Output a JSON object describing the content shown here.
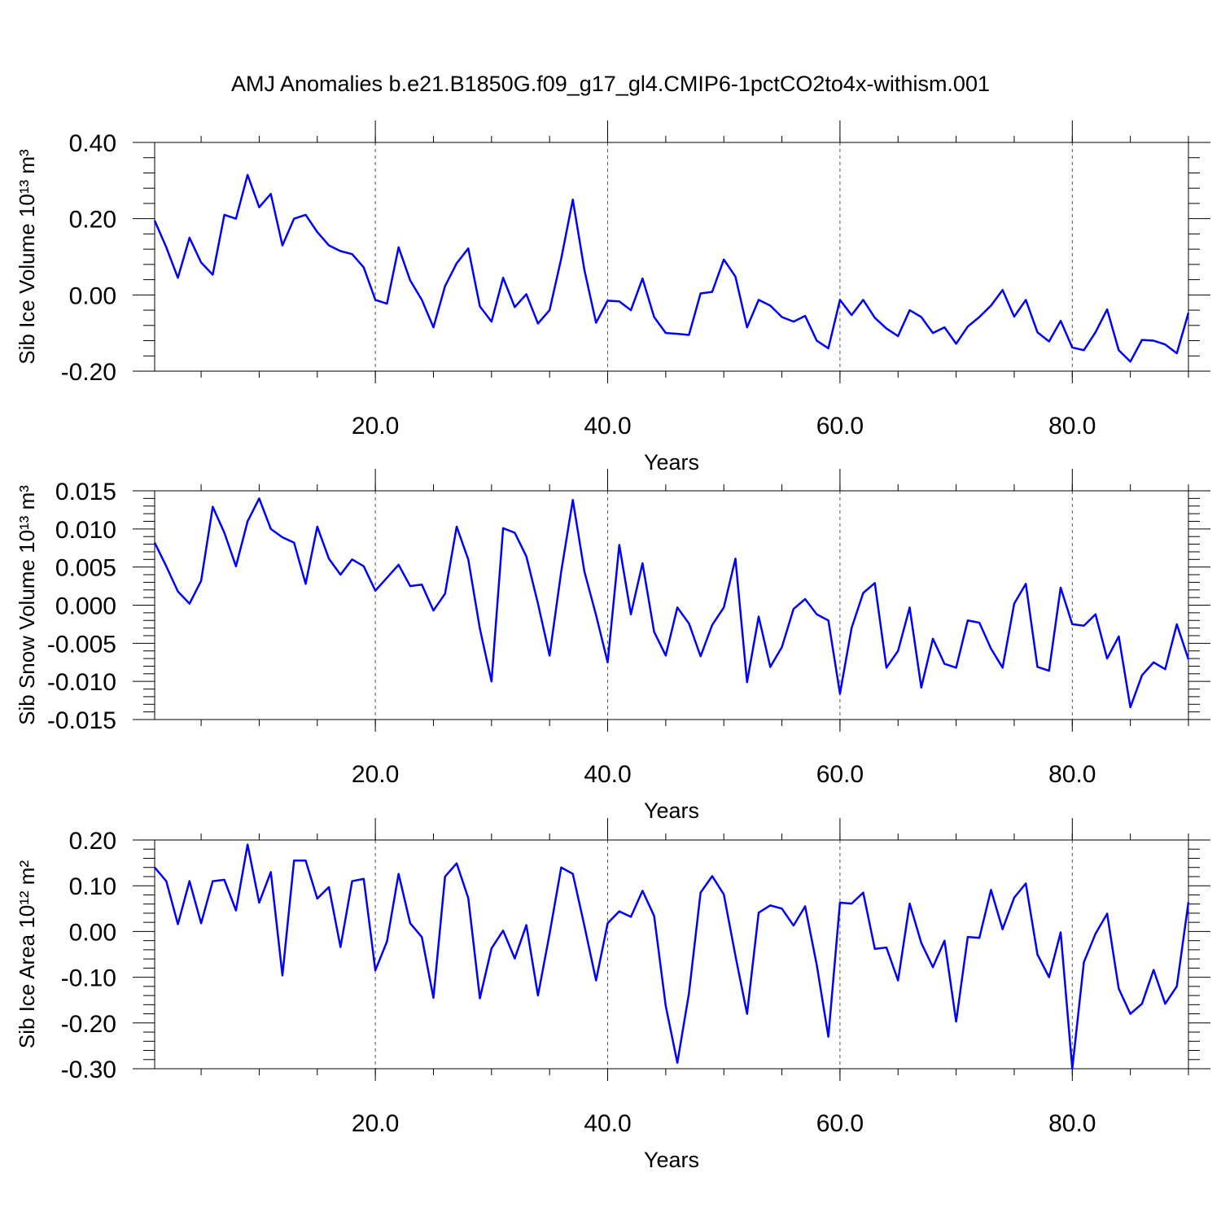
{
  "chart_data": [
    {
      "type": "line",
      "title": "AMJ Anomalies b.e21.B1850G.f09_g17_gl4.CMIP6-1pctCO2to4x-withism.001",
      "ylabel": "Sib Ice Volume 10¹³ m³",
      "xlabel": "Years",
      "color": "#0000ff",
      "grid": true,
      "xlim": [
        1,
        90
      ],
      "xticks": [
        {
          "value": 20,
          "label": "20.0"
        },
        {
          "value": 40,
          "label": "40.0"
        },
        {
          "value": 60,
          "label": "60.0"
        },
        {
          "value": 80,
          "label": "80.0"
        }
      ],
      "ylim": [
        -0.2,
        0.4
      ],
      "yticks": [
        {
          "value": -0.2,
          "label": "-0.20"
        },
        {
          "value": 0,
          "label": "0.00"
        },
        {
          "value": 0.2,
          "label": "0.20"
        },
        {
          "value": 0.4,
          "label": "0.40"
        }
      ],
      "x": [
        1,
        2,
        3,
        4,
        5,
        6,
        7,
        8,
        9,
        10,
        11,
        12,
        13,
        14,
        15,
        16,
        17,
        18,
        19,
        20,
        21,
        22,
        23,
        24,
        25,
        26,
        27,
        28,
        29,
        30,
        31,
        32,
        33,
        34,
        35,
        36,
        37,
        38,
        39,
        40,
        41,
        42,
        43,
        44,
        45,
        46,
        47,
        48,
        49,
        50,
        51,
        52,
        53,
        54,
        55,
        56,
        57,
        58,
        59,
        60,
        61,
        62,
        63,
        64,
        65,
        66,
        67,
        68,
        69,
        70,
        71,
        72,
        73,
        74,
        75,
        76,
        77,
        78,
        79,
        80,
        81,
        82,
        83,
        84,
        85,
        86,
        87,
        88,
        89,
        90
      ],
      "values": [
        0.195,
        0.125,
        0.045,
        0.15,
        0.085,
        0.053,
        0.21,
        0.2,
        0.315,
        0.23,
        0.265,
        0.13,
        0.2,
        0.21,
        0.165,
        0.13,
        0.115,
        0.107,
        0.072,
        -0.013,
        -0.023,
        0.125,
        0.038,
        -0.013,
        -0.085,
        0.023,
        0.083,
        0.122,
        -0.03,
        -0.07,
        0.045,
        -0.032,
        0.002,
        -0.075,
        -0.04,
        0.095,
        0.25,
        0.065,
        -0.073,
        -0.015,
        -0.017,
        -0.04,
        0.043,
        -0.058,
        -0.1,
        -0.102,
        -0.105,
        0.004,
        0.008,
        0.093,
        0.048,
        -0.085,
        -0.013,
        -0.028,
        -0.058,
        -0.07,
        -0.055,
        -0.12,
        -0.14,
        -0.013,
        -0.053,
        -0.013,
        -0.06,
        -0.088,
        -0.108,
        -0.04,
        -0.058,
        -0.1,
        -0.085,
        -0.128,
        -0.083,
        -0.058,
        -0.028,
        0.013,
        -0.057,
        -0.013,
        -0.098,
        -0.122,
        -0.068,
        -0.138,
        -0.145,
        -0.098,
        -0.038,
        -0.145,
        -0.175,
        -0.118,
        -0.12,
        -0.13,
        -0.153,
        -0.047
      ]
    },
    {
      "type": "line",
      "ylabel": "Sib Snow Volume 10¹³ m³",
      "xlabel": "Years",
      "color": "#0000ff",
      "grid": true,
      "xlim": [
        1,
        90
      ],
      "xticks": [
        {
          "value": 20,
          "label": "20.0"
        },
        {
          "value": 40,
          "label": "40.0"
        },
        {
          "value": 60,
          "label": "60.0"
        },
        {
          "value": 80,
          "label": "80.0"
        }
      ],
      "ylim": [
        -0.015,
        0.015
      ],
      "yticks": [
        {
          "value": -0.015,
          "label": "-0.015"
        },
        {
          "value": -0.01,
          "label": "-0.010"
        },
        {
          "value": -0.005,
          "label": "-0.005"
        },
        {
          "value": 0,
          "label": "0.000"
        },
        {
          "value": 0.005,
          "label": "0.005"
        },
        {
          "value": 0.01,
          "label": "0.010"
        },
        {
          "value": 0.015,
          "label": "0.015"
        }
      ],
      "x": [
        1,
        2,
        3,
        4,
        5,
        6,
        7,
        8,
        9,
        10,
        11,
        12,
        13,
        14,
        15,
        16,
        17,
        18,
        19,
        20,
        21,
        22,
        23,
        24,
        25,
        26,
        27,
        28,
        29,
        30,
        31,
        32,
        33,
        34,
        35,
        36,
        37,
        38,
        39,
        40,
        41,
        42,
        43,
        44,
        45,
        46,
        47,
        48,
        49,
        50,
        51,
        52,
        53,
        54,
        55,
        56,
        57,
        58,
        59,
        60,
        61,
        62,
        63,
        64,
        65,
        66,
        67,
        68,
        69,
        70,
        71,
        72,
        73,
        74,
        75,
        76,
        77,
        78,
        79,
        80,
        81,
        82,
        83,
        84,
        85,
        86,
        87,
        88,
        89,
        90
      ],
      "values": [
        0.0082,
        0.0051,
        0.0018,
        0.0002,
        0.0032,
        0.0129,
        0.0095,
        0.0051,
        0.011,
        0.014,
        0.01,
        0.0089,
        0.0082,
        0.0028,
        0.0103,
        0.0061,
        0.004,
        0.006,
        0.0051,
        0.0019,
        0.0036,
        0.0053,
        0.0025,
        0.0027,
        -0.0007,
        0.0015,
        0.0103,
        0.006,
        -0.0031,
        -0.01,
        0.0101,
        0.0095,
        0.0064,
        0.0002,
        -0.0066,
        0.0044,
        0.0138,
        0.0044,
        -0.0013,
        -0.0075,
        0.0079,
        -0.0012,
        0.0055,
        -0.0035,
        -0.0066,
        -0.0003,
        -0.0024,
        -0.0067,
        -0.0026,
        -0.0003,
        0.0061,
        -0.0101,
        -0.0015,
        -0.0081,
        -0.0055,
        -0.0005,
        0.0008,
        -0.0012,
        -0.002,
        -0.0116,
        -0.003,
        0.0016,
        0.0029,
        -0.0082,
        -0.006,
        -0.0003,
        -0.0108,
        -0.0044,
        -0.0077,
        -0.0082,
        -0.002,
        -0.0023,
        -0.0057,
        -0.0082,
        0.0002,
        0.0028,
        -0.0081,
        -0.0086,
        0.0023,
        -0.0025,
        -0.0027,
        -0.0012,
        -0.007,
        -0.0041,
        -0.0134,
        -0.0092,
        -0.0075,
        -0.0084,
        -0.0025,
        -0.0071
      ]
    },
    {
      "type": "line",
      "ylabel": "Sib Ice Area 10¹² m²",
      "xlabel": "Years",
      "color": "#0000ff",
      "grid": true,
      "xlim": [
        1,
        90
      ],
      "xticks": [
        {
          "value": 20,
          "label": "20.0"
        },
        {
          "value": 40,
          "label": "40.0"
        },
        {
          "value": 60,
          "label": "60.0"
        },
        {
          "value": 80,
          "label": "80.0"
        }
      ],
      "ylim": [
        -0.3,
        0.2
      ],
      "yticks": [
        {
          "value": -0.3,
          "label": "-0.30"
        },
        {
          "value": -0.2,
          "label": "-0.20"
        },
        {
          "value": -0.1,
          "label": "-0.10"
        },
        {
          "value": 0,
          "label": "0.00"
        },
        {
          "value": 0.1,
          "label": "0.10"
        },
        {
          "value": 0.2,
          "label": "0.20"
        }
      ],
      "x": [
        1,
        2,
        3,
        4,
        5,
        6,
        7,
        8,
        9,
        10,
        11,
        12,
        13,
        14,
        15,
        16,
        17,
        18,
        19,
        20,
        21,
        22,
        23,
        24,
        25,
        26,
        27,
        28,
        29,
        30,
        31,
        32,
        33,
        34,
        35,
        36,
        37,
        38,
        39,
        40,
        41,
        42,
        43,
        44,
        45,
        46,
        47,
        48,
        49,
        50,
        51,
        52,
        53,
        54,
        55,
        56,
        57,
        58,
        59,
        60,
        61,
        62,
        63,
        64,
        65,
        66,
        67,
        68,
        69,
        70,
        71,
        72,
        73,
        74,
        75,
        76,
        77,
        78,
        79,
        80,
        81,
        82,
        83,
        84,
        85,
        86,
        87,
        88,
        89,
        90
      ],
      "values": [
        0.14,
        0.11,
        0.016,
        0.11,
        0.018,
        0.11,
        0.113,
        0.046,
        0.19,
        0.063,
        0.13,
        -0.096,
        0.155,
        0.155,
        0.072,
        0.097,
        -0.034,
        0.11,
        0.115,
        -0.085,
        -0.022,
        0.126,
        0.018,
        -0.012,
        -0.145,
        0.12,
        0.149,
        0.073,
        -0.146,
        -0.037,
        0.002,
        -0.059,
        0.014,
        -0.14,
        -0.005,
        0.14,
        0.126,
        0.012,
        -0.107,
        0.018,
        0.044,
        0.032,
        0.089,
        0.034,
        -0.163,
        -0.287,
        -0.135,
        0.085,
        0.121,
        0.081,
        -0.053,
        -0.18,
        0.041,
        0.057,
        0.05,
        0.013,
        0.055,
        -0.073,
        -0.23,
        0.063,
        0.061,
        0.085,
        -0.038,
        -0.035,
        -0.107,
        0.061,
        -0.025,
        -0.078,
        -0.02,
        -0.197,
        -0.012,
        -0.014,
        0.091,
        0.005,
        0.074,
        0.105,
        -0.05,
        -0.1,
        -0.002,
        -0.3,
        -0.067,
        -0.005,
        0.039,
        -0.125,
        -0.18,
        -0.158,
        -0.084,
        -0.158,
        -0.12,
        0.064
      ]
    }
  ]
}
